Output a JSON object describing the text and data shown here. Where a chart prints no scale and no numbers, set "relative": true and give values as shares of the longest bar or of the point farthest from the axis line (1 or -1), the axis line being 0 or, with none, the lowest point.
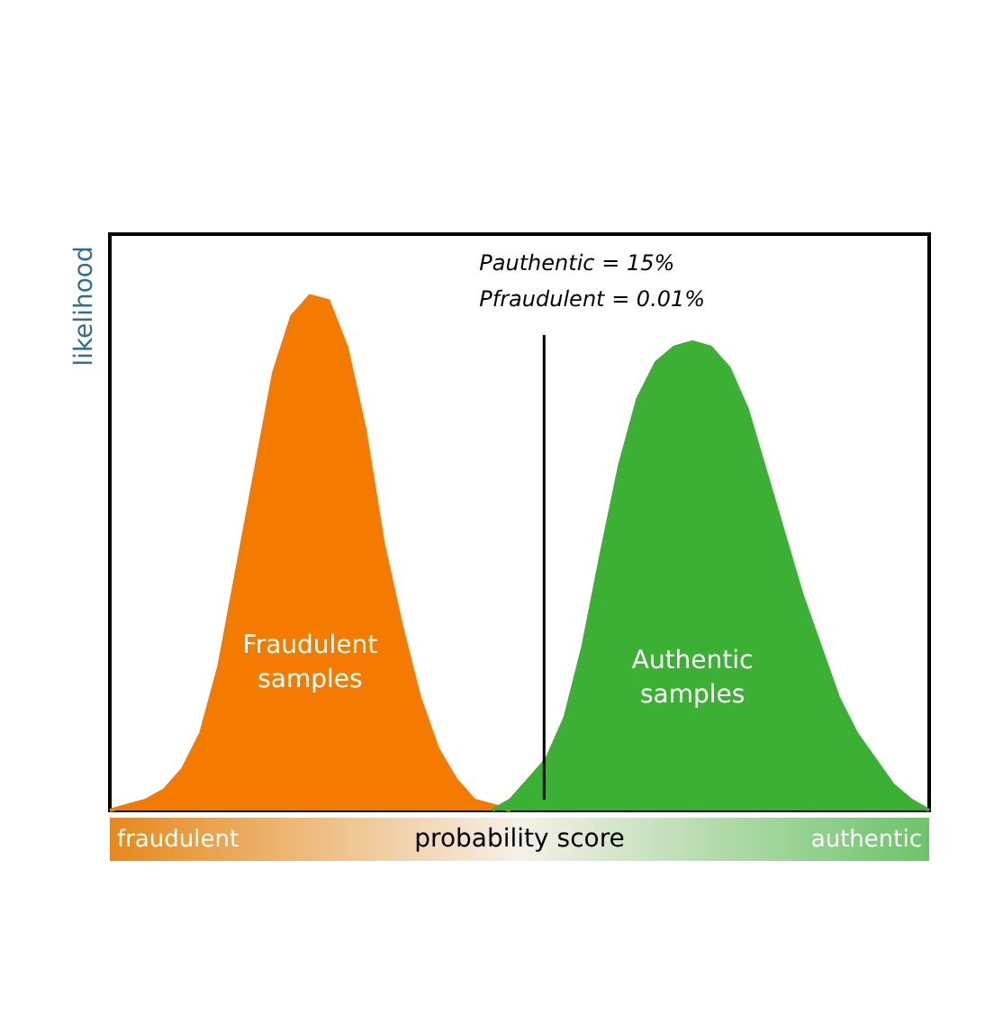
{
  "chart_data": {
    "type": "area",
    "relative": true,
    "xlabel": "probability score",
    "ylabel": "likelihood",
    "categories": [
      null,
      null,
      null,
      null,
      null,
      null,
      null,
      null,
      null,
      null,
      null,
      null,
      null,
      null,
      null,
      null,
      null,
      null,
      null,
      null,
      null,
      null,
      null,
      null,
      null,
      null,
      null,
      null,
      null,
      null,
      null,
      null,
      null,
      null,
      null,
      null,
      null,
      null,
      null,
      null,
      null,
      null,
      null,
      null,
      null,
      null
    ],
    "series": [
      {
        "name": "Fraudulent samples",
        "color": "#f47b00",
        "values": [
          0,
          0.01,
          0.02,
          0.04,
          0.08,
          0.15,
          0.28,
          0.47,
          0.66,
          0.85,
          0.96,
          1.0,
          0.99,
          0.9,
          0.74,
          0.52,
          0.36,
          0.22,
          0.12,
          0.06,
          0.02,
          0.01,
          0,
          null,
          null,
          null,
          null,
          null,
          null,
          null,
          null,
          null,
          null,
          null,
          null,
          null,
          null,
          null,
          null,
          null,
          null,
          null,
          null,
          null,
          null,
          null
        ]
      },
      {
        "name": "Authentic samples",
        "color": "#3cb034",
        "values": [
          null,
          null,
          null,
          null,
          null,
          null,
          null,
          null,
          null,
          null,
          null,
          null,
          null,
          null,
          null,
          null,
          null,
          null,
          null,
          null,
          null,
          0,
          0.02,
          0.06,
          0.1,
          0.18,
          0.32,
          0.5,
          0.67,
          0.8,
          0.87,
          0.9,
          0.91,
          0.9,
          0.86,
          0.78,
          0.66,
          0.54,
          0.42,
          0.32,
          0.22,
          0.15,
          0.1,
          0.05,
          0.02,
          0
        ]
      }
    ],
    "annotations": [
      "Pauthentic = 15%",
      "Pfraudulent = 0.01%",
      "fraudulent",
      "authentic"
    ]
  }
}
